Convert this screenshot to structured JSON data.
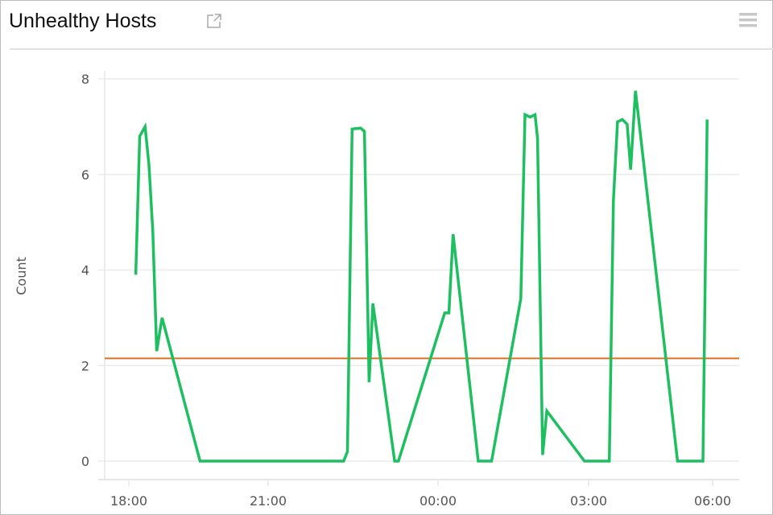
{
  "header": {
    "title": "Unhealthy Hosts",
    "external_link_icon": "external-link-icon",
    "menu_icon": "hamburger-menu-icon"
  },
  "colors": {
    "series": "#1dbf60",
    "threshold": "#e07020",
    "grid": "#ebebeb"
  },
  "chart_data": {
    "type": "line",
    "title": "Unhealthy Hosts",
    "xlabel": "",
    "ylabel": "Count",
    "ylim": [
      0,
      8
    ],
    "yticks": [
      "0",
      "2",
      "4",
      "6",
      "8"
    ],
    "xticks": [
      "18:00",
      "21:00",
      "00:00",
      "03:00",
      "06:00"
    ],
    "grid": true,
    "legend": "none",
    "threshold": 2.15,
    "series": [
      {
        "x": [
          "18:09",
          "18:14",
          "18:21",
          "18:26",
          "18:31",
          "18:36",
          "18:43",
          "19:32",
          "22:20",
          "22:24",
          "22:29",
          "22:38",
          "22:42",
          "22:47",
          "22:51",
          "23:14",
          "23:18",
          "00:08",
          "00:13",
          "00:18",
          "00:48",
          "01:04",
          "01:39",
          "01:44",
          "01:50",
          "01:56",
          "01:59",
          "02:05",
          "02:10",
          "02:55",
          "03:30",
          "03:36",
          "03:42",
          "03:49",
          "03:56",
          "04:01",
          "04:08",
          "05:09",
          "05:46",
          "05:52"
        ],
        "y": [
          3.9,
          6.8,
          7.0,
          6.2,
          4.8,
          2.3,
          3.0,
          0,
          0,
          0.2,
          6.95,
          6.97,
          6.9,
          1.65,
          3.3,
          0,
          0,
          3.1,
          3.1,
          4.75,
          0,
          0,
          3.4,
          7.25,
          7.2,
          7.25,
          6.75,
          0.13,
          1.05,
          0,
          0,
          5.45,
          7.1,
          7.15,
          7.05,
          6.1,
          7.75,
          0,
          0,
          7.15
        ]
      }
    ]
  }
}
